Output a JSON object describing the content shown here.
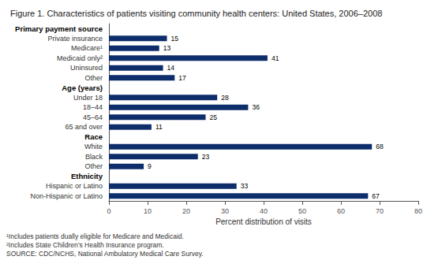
{
  "chart_data": {
    "type": "bar",
    "orientation": "horizontal",
    "title": "Figure 1. Characteristics of patients visiting community health centers: United States, 2006–2008",
    "categories": [
      "Non-Hispanic or Latino",
      "Hispanic or Latino",
      "Ethnicity",
      "Other",
      "Black",
      "White",
      "Race",
      "65 and over",
      "45–64",
      "18–44",
      "Under 18",
      "Age (years)",
      "Other",
      "Uninsured",
      "Medicaid only²",
      "Medicare¹",
      "Private insurance",
      "Primary payment source"
    ],
    "values": [
      67,
      33,
      null,
      9,
      23,
      68,
      null,
      11,
      25,
      36,
      28,
      null,
      17,
      14,
      41,
      13,
      15,
      null
    ],
    "color": "#0d2d6b",
    "xlabel": "Percent distribution of visits",
    "xlim": [
      0,
      80
    ],
    "xticks": [
      0,
      10,
      20,
      30,
      40,
      50,
      60,
      70,
      80
    ],
    "data_labels": true,
    "grid": false,
    "annotations": [
      "¹Includes patients dually eligible for Medicare and Medicaid.",
      "²Includes State Children’s Health Insurance program.",
      "SOURCE: CDC/NCHS, National Ambulatory Medical Care Survey."
    ]
  }
}
